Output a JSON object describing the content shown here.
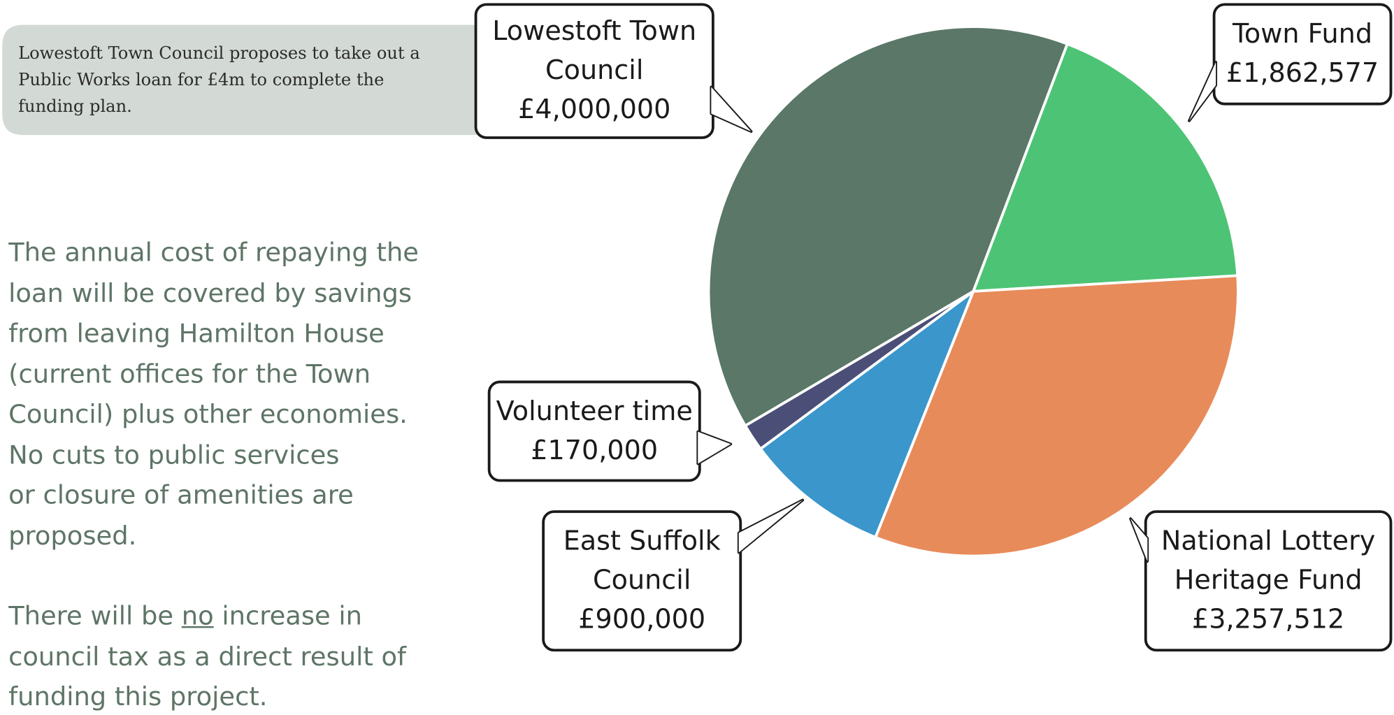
{
  "note": "Lowestoft Town Council proposes to take out a Public Works loan for £4m to complete the funding plan.",
  "body": {
    "paragraph_1": [
      "The annual cost of repaying the loan will be covered by savings from leaving Hamilton House (current offices for the Town Council) plus other economies.",
      "No cuts to public services or closure of amenities are proposed."
    ],
    "paragraph_2": [
      "There will be ",
      "no",
      " increase in council tax as a direct result of funding this project."
    ]
  },
  "chart_data": {
    "type": "pie",
    "categories": [
      "Town Fund",
      "National Lottery Heritage Fund",
      "East Suffolk Council",
      "Volunteer time",
      "Lowestoft Town Council"
    ],
    "values": [
      1862577,
      3257512,
      900000,
      170000,
      4000000
    ],
    "value_labels": [
      "£1,862,577",
      "£3,257,512",
      "£900,000",
      "£170,000",
      "£4,000,000"
    ],
    "colors": [
      "#4dc475",
      "#e88b5a",
      "#3b96cb",
      "#4b4e76",
      "#5a7767"
    ]
  }
}
